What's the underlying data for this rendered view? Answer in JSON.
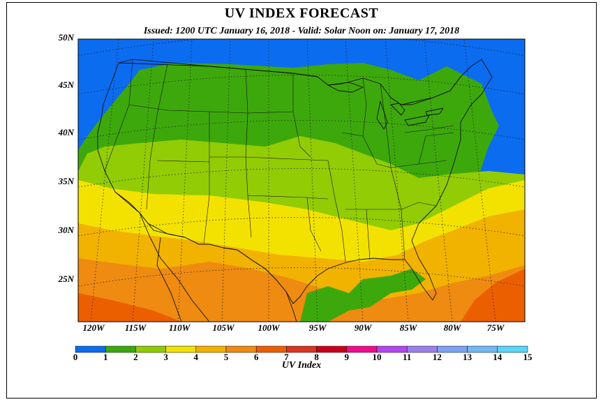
{
  "title": "UV INDEX FORECAST",
  "subtitle": "Issued: 1200 UTC January 16, 2018  -  Valid: Solar Noon on: January 17, 2018",
  "lat_labels": [
    "50N",
    "45N",
    "40N",
    "35N",
    "30N",
    "25N"
  ],
  "lon_labels": [
    "120W",
    "115W",
    "110W",
    "105W",
    "100W",
    "95W",
    "90W",
    "85W",
    "80W",
    "75W"
  ],
  "colorbar": {
    "label": "UV Index",
    "ticks": [
      "0",
      "1",
      "2",
      "3",
      "4",
      "5",
      "6",
      "7",
      "8",
      "9",
      "10",
      "11",
      "12",
      "13",
      "14",
      "15"
    ],
    "colors": [
      "#0b6cf0",
      "#3da80c",
      "#92cc04",
      "#f3e200",
      "#f2b200",
      "#ef8b10",
      "#ec5f00",
      "#d93520",
      "#c8001c",
      "#f00c8c",
      "#b445f2",
      "#9b80ec",
      "#7fa2f4",
      "#72b8f4",
      "#5ad6f8"
    ]
  }
}
